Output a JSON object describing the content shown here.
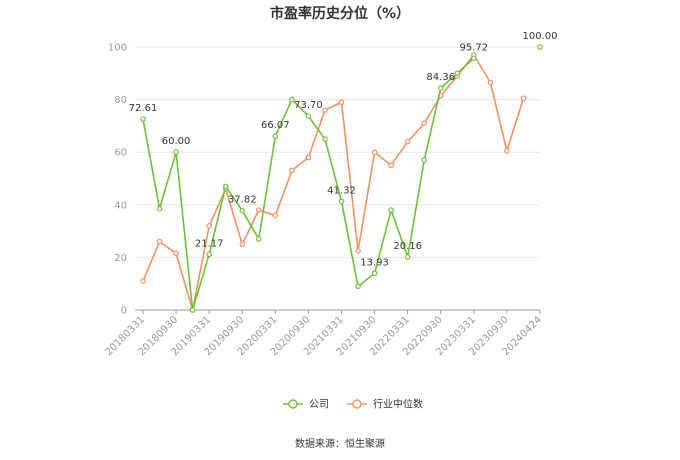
{
  "chart_data": {
    "type": "line",
    "title": "市盈率历史分位（%）",
    "source": "数据来源：恒生聚源",
    "ylim": [
      0,
      100
    ],
    "yticks": [
      0,
      20,
      40,
      60,
      80,
      100
    ],
    "grid": true,
    "legend_position": "bottom",
    "xtick_labels": [
      "20180331",
      "20180930",
      "20190331",
      "20190930",
      "20200331",
      "20200930",
      "20210331",
      "20210930",
      "20220331",
      "20220930",
      "20230331",
      "20230930",
      "20240424"
    ],
    "x": [
      "20180331",
      "20180630",
      "20180930",
      "20181231",
      "20190331",
      "20190630",
      "20190930",
      "20191231",
      "20200331",
      "20200630",
      "20200930",
      "20201231",
      "20210331",
      "20210630",
      "20210930",
      "20211231",
      "20220331",
      "20220630",
      "20220930",
      "20221231",
      "20230331",
      "20230630",
      "20230930",
      "20231231",
      "20240424"
    ],
    "series": [
      {
        "name": "公司",
        "color": "#6bc136",
        "values": [
          72.61,
          38.5,
          60.0,
          0.0,
          21.17,
          47.0,
          37.82,
          27.0,
          66.07,
          80.0,
          73.7,
          65.0,
          41.32,
          9.0,
          13.93,
          38.0,
          20.16,
          57.0,
          84.36,
          90.0,
          95.72,
          null,
          null,
          null,
          100.0
        ]
      },
      {
        "name": "行业中位数",
        "color": "#f4915f",
        "values": [
          11.0,
          26.0,
          21.5,
          0.0,
          32.0,
          46.0,
          25.0,
          38.0,
          36.0,
          53.0,
          58.0,
          76.0,
          79.0,
          22.5,
          60.0,
          55.0,
          64.0,
          71.0,
          81.5,
          89.0,
          97.0,
          86.5,
          60.5,
          80.5,
          null
        ]
      }
    ],
    "data_labels": [
      {
        "series": 0,
        "index": 0,
        "text": "72.61"
      },
      {
        "series": 0,
        "index": 2,
        "text": "60.00"
      },
      {
        "series": 0,
        "index": 4,
        "text": "21.17"
      },
      {
        "series": 0,
        "index": 6,
        "text": "37.82"
      },
      {
        "series": 0,
        "index": 8,
        "text": "66.07"
      },
      {
        "series": 0,
        "index": 10,
        "text": "73.70"
      },
      {
        "series": 0,
        "index": 12,
        "text": "41.32"
      },
      {
        "series": 0,
        "index": 14,
        "text": "13.93"
      },
      {
        "series": 0,
        "index": 16,
        "text": "20.16"
      },
      {
        "series": 0,
        "index": 18,
        "text": "84.36"
      },
      {
        "series": 0,
        "index": 20,
        "text": "95.72"
      },
      {
        "series": 0,
        "index": 24,
        "text": "100.00"
      }
    ]
  }
}
